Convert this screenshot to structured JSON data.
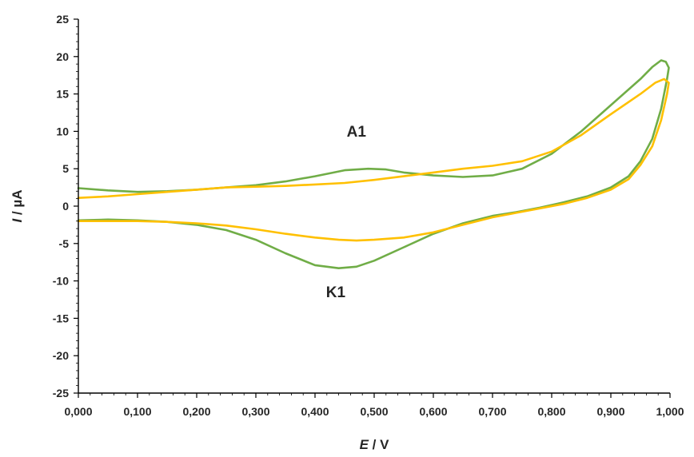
{
  "chart_data": {
    "type": "line",
    "title": "",
    "xlabel_italic": "E",
    "xlabel_rest": " / V",
    "ylabel_italic": "I",
    "ylabel_rest": " / µA",
    "xlim": [
      0,
      1.0
    ],
    "ylim": [
      -25,
      25
    ],
    "x_ticks": [
      0,
      0.1,
      0.2,
      0.3,
      0.4,
      0.5,
      0.6,
      0.7,
      0.8,
      0.9,
      1.0
    ],
    "x_tick_labels": [
      "0,000",
      "0,100",
      "0,200",
      "0,300",
      "0,400",
      "0,500",
      "0,600",
      "0,700",
      "0,800",
      "0,900",
      "1,000"
    ],
    "y_ticks": [
      -25,
      -20,
      -15,
      -10,
      -5,
      0,
      5,
      10,
      15,
      20,
      25
    ],
    "y_tick_labels": [
      "-25",
      "-20",
      "-15",
      "-10",
      "-5",
      "0",
      "5",
      "10",
      "15",
      "20",
      "25"
    ],
    "grid": false,
    "legend": "none",
    "annotations": [
      {
        "text": "A1",
        "x": 0.47,
        "y": 9.3
      },
      {
        "text": "K1",
        "x": 0.435,
        "y": -12.2
      }
    ],
    "series": [
      {
        "color": "#70ad47",
        "points": [
          [
            0.0,
            2.4
          ],
          [
            0.05,
            2.1
          ],
          [
            0.1,
            1.9
          ],
          [
            0.15,
            2.0
          ],
          [
            0.2,
            2.2
          ],
          [
            0.25,
            2.5
          ],
          [
            0.3,
            2.8
          ],
          [
            0.35,
            3.3
          ],
          [
            0.4,
            4.0
          ],
          [
            0.45,
            4.8
          ],
          [
            0.49,
            5.0
          ],
          [
            0.52,
            4.9
          ],
          [
            0.55,
            4.5
          ],
          [
            0.6,
            4.1
          ],
          [
            0.65,
            3.9
          ],
          [
            0.7,
            4.1
          ],
          [
            0.75,
            5.0
          ],
          [
            0.8,
            7.0
          ],
          [
            0.85,
            10.0
          ],
          [
            0.9,
            13.5
          ],
          [
            0.95,
            17.0
          ],
          [
            0.97,
            18.6
          ],
          [
            0.985,
            19.5
          ],
          [
            0.993,
            19.3
          ],
          [
            0.998,
            18.5
          ],
          [
            0.995,
            17.0
          ],
          [
            0.985,
            13.0
          ],
          [
            0.97,
            9.0
          ],
          [
            0.95,
            6.0
          ],
          [
            0.93,
            4.0
          ],
          [
            0.9,
            2.5
          ],
          [
            0.86,
            1.3
          ],
          [
            0.82,
            0.5
          ],
          [
            0.78,
            -0.2
          ],
          [
            0.74,
            -0.8
          ],
          [
            0.7,
            -1.3
          ],
          [
            0.65,
            -2.3
          ],
          [
            0.6,
            -3.7
          ],
          [
            0.55,
            -5.5
          ],
          [
            0.5,
            -7.3
          ],
          [
            0.47,
            -8.1
          ],
          [
            0.44,
            -8.3
          ],
          [
            0.4,
            -7.9
          ],
          [
            0.35,
            -6.3
          ],
          [
            0.3,
            -4.5
          ],
          [
            0.25,
            -3.2
          ],
          [
            0.2,
            -2.5
          ],
          [
            0.15,
            -2.1
          ],
          [
            0.1,
            -1.9
          ],
          [
            0.05,
            -1.8
          ],
          [
            0.0,
            -1.9
          ]
        ]
      },
      {
        "color": "#ffc000",
        "points": [
          [
            0.0,
            1.1
          ],
          [
            0.05,
            1.3
          ],
          [
            0.1,
            1.6
          ],
          [
            0.15,
            1.9
          ],
          [
            0.2,
            2.2
          ],
          [
            0.25,
            2.5
          ],
          [
            0.3,
            2.6
          ],
          [
            0.35,
            2.7
          ],
          [
            0.4,
            2.9
          ],
          [
            0.45,
            3.1
          ],
          [
            0.5,
            3.5
          ],
          [
            0.55,
            4.0
          ],
          [
            0.6,
            4.5
          ],
          [
            0.65,
            5.0
          ],
          [
            0.7,
            5.4
          ],
          [
            0.75,
            6.0
          ],
          [
            0.8,
            7.3
          ],
          [
            0.85,
            9.5
          ],
          [
            0.9,
            12.3
          ],
          [
            0.95,
            15.0
          ],
          [
            0.975,
            16.5
          ],
          [
            0.99,
            17.0
          ],
          [
            0.998,
            16.5
          ],
          [
            0.995,
            15.0
          ],
          [
            0.985,
            11.5
          ],
          [
            0.97,
            8.0
          ],
          [
            0.95,
            5.5
          ],
          [
            0.93,
            3.6
          ],
          [
            0.9,
            2.2
          ],
          [
            0.86,
            1.1
          ],
          [
            0.82,
            0.3
          ],
          [
            0.78,
            -0.3
          ],
          [
            0.74,
            -0.9
          ],
          [
            0.7,
            -1.5
          ],
          [
            0.65,
            -2.5
          ],
          [
            0.6,
            -3.5
          ],
          [
            0.55,
            -4.2
          ],
          [
            0.5,
            -4.5
          ],
          [
            0.47,
            -4.6
          ],
          [
            0.44,
            -4.5
          ],
          [
            0.4,
            -4.2
          ],
          [
            0.35,
            -3.7
          ],
          [
            0.3,
            -3.1
          ],
          [
            0.25,
            -2.6
          ],
          [
            0.2,
            -2.3
          ],
          [
            0.15,
            -2.1
          ],
          [
            0.1,
            -2.0
          ],
          [
            0.05,
            -2.0
          ],
          [
            0.0,
            -2.0
          ]
        ]
      }
    ]
  }
}
